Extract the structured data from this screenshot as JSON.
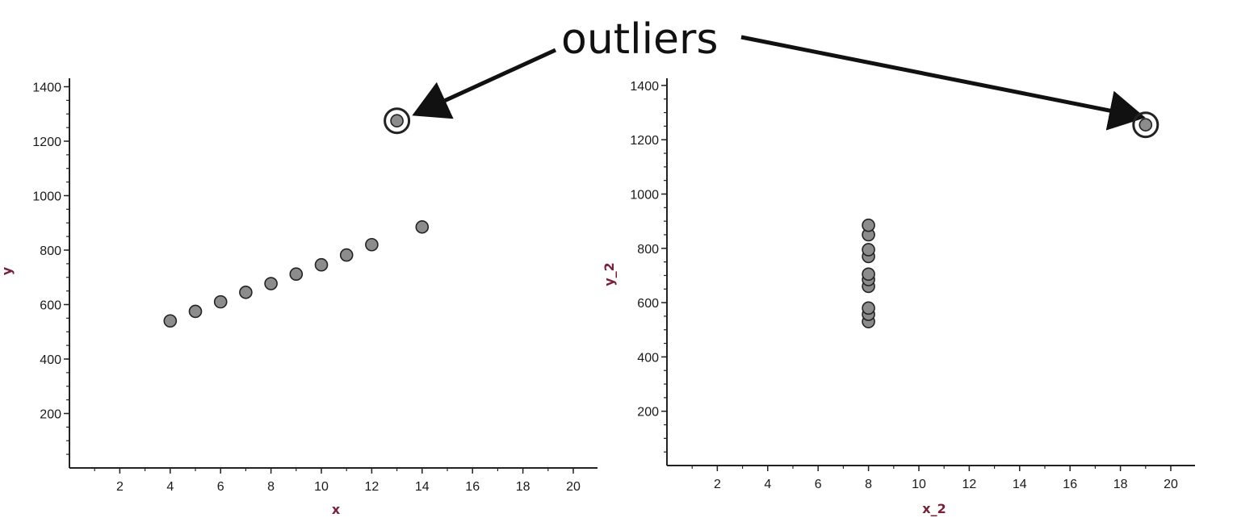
{
  "annotation": {
    "text": "outliers",
    "text_color": "#111111",
    "arrow_color": "#111111"
  },
  "colors": {
    "point_fill": "#8c8c8c",
    "point_stroke": "#222222",
    "axis": "#222222",
    "tick_text": "#1a1a1a",
    "axis_title": "#7a1f3a"
  },
  "chart_data": [
    {
      "type": "scatter",
      "title": "",
      "xlabel": "x",
      "ylabel": "y",
      "xlim": [
        0,
        21
      ],
      "ylim": [
        0,
        1430
      ],
      "x_ticks": [
        2,
        4,
        6,
        8,
        10,
        12,
        14,
        16,
        18,
        20
      ],
      "y_ticks": [
        200,
        400,
        600,
        800,
        1000,
        1200,
        1400
      ],
      "grid": false,
      "legend": "none",
      "points": [
        {
          "x": 4,
          "y": 540
        },
        {
          "x": 5,
          "y": 575
        },
        {
          "x": 6,
          "y": 610
        },
        {
          "x": 7,
          "y": 645
        },
        {
          "x": 8,
          "y": 677
        },
        {
          "x": 9,
          "y": 712
        },
        {
          "x": 10,
          "y": 746
        },
        {
          "x": 11,
          "y": 782
        },
        {
          "x": 12,
          "y": 820
        },
        {
          "x": 13,
          "y": 1275,
          "outlier": true
        },
        {
          "x": 14,
          "y": 885
        }
      ]
    },
    {
      "type": "scatter",
      "title": "",
      "xlabel": "x_2",
      "ylabel": "y_2",
      "xlim": [
        0,
        21
      ],
      "ylim": [
        0,
        1430
      ],
      "x_ticks": [
        2,
        4,
        6,
        8,
        10,
        12,
        14,
        16,
        18,
        20
      ],
      "y_ticks": [
        200,
        400,
        600,
        800,
        1000,
        1200,
        1400
      ],
      "grid": false,
      "legend": "none",
      "points": [
        {
          "x": 8,
          "y": 530
        },
        {
          "x": 8,
          "y": 557
        },
        {
          "x": 8,
          "y": 580
        },
        {
          "x": 8,
          "y": 660
        },
        {
          "x": 8,
          "y": 685
        },
        {
          "x": 8,
          "y": 705
        },
        {
          "x": 8,
          "y": 770
        },
        {
          "x": 8,
          "y": 795
        },
        {
          "x": 8,
          "y": 850
        },
        {
          "x": 8,
          "y": 885
        },
        {
          "x": 19,
          "y": 1255,
          "outlier": true
        }
      ]
    }
  ]
}
